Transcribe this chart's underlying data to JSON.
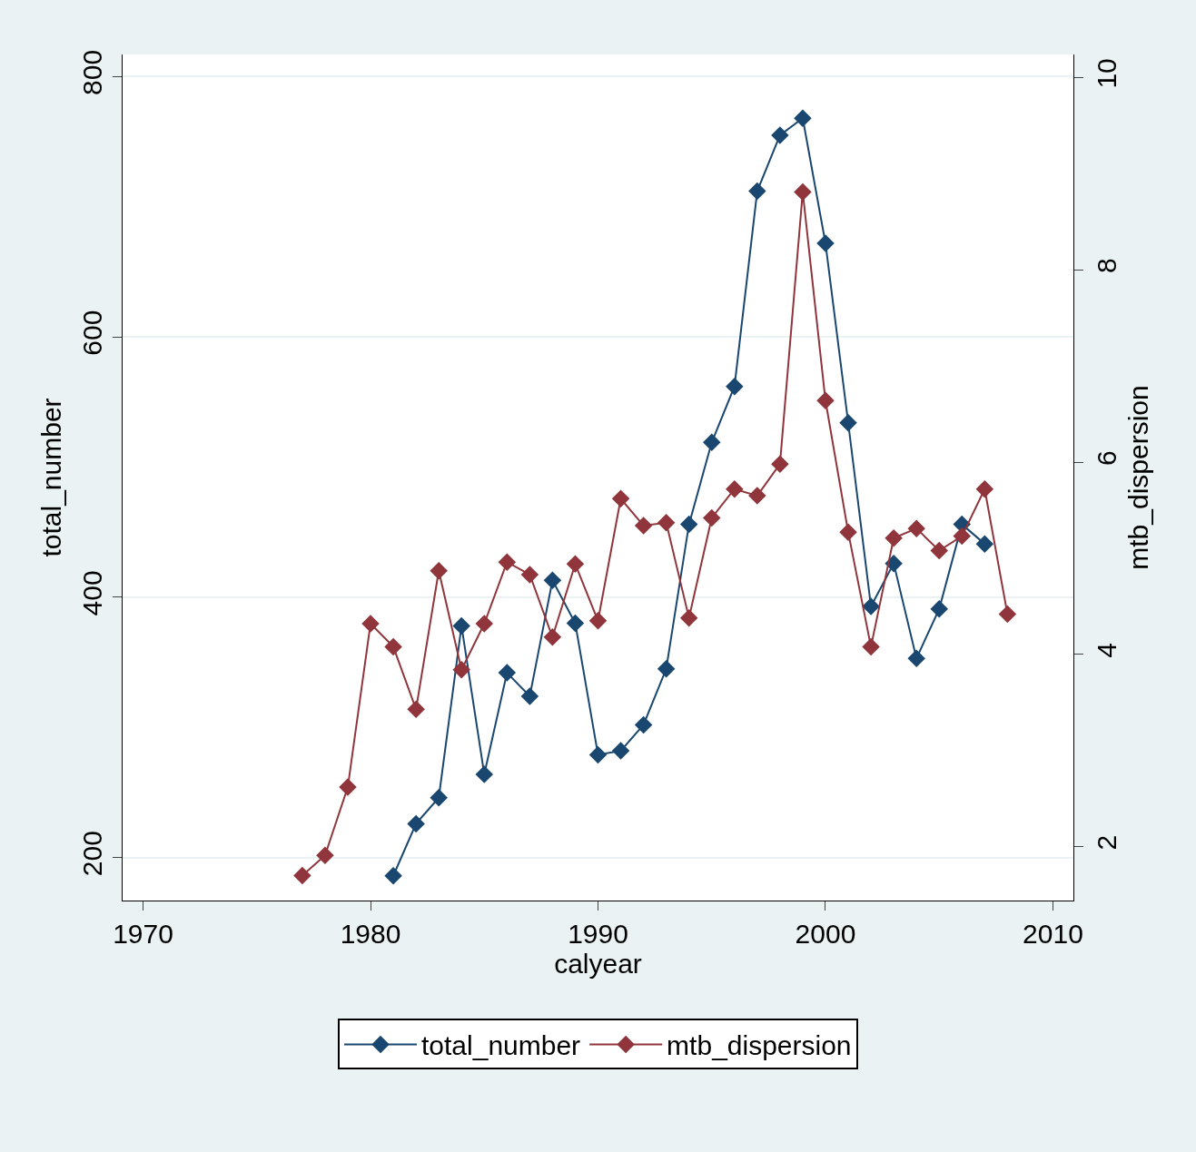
{
  "chart_data": {
    "type": "line",
    "xlabel": "calyear",
    "ylabel": "total_number",
    "y2label": "mtb_dispersion",
    "xlim": [
      1969.1,
      2010.9
    ],
    "xticks": [
      1970,
      1980,
      1990,
      2000,
      2010
    ],
    "ylim": [
      167,
      817
    ],
    "yticks": [
      200,
      400,
      600,
      800
    ],
    "y2lim": [
      1.44,
      10.24
    ],
    "y2ticks": [
      2,
      4,
      6,
      8,
      10
    ],
    "grid": "y",
    "legend": "bottom",
    "marker": "diamond",
    "line_style": "solid",
    "series": [
      {
        "name": "total_number",
        "color": "#1a476f",
        "x": [
          1981,
          1982,
          1983,
          1984,
          1985,
          1986,
          1987,
          1988,
          1989,
          1990,
          1991,
          1992,
          1993,
          1994,
          1995,
          1996,
          1997,
          1998,
          1999,
          2000,
          2001,
          2002,
          2003,
          2004,
          2005,
          2006,
          2007
        ],
        "values": [
          186,
          226,
          246,
          378,
          264,
          342,
          324,
          413,
          380,
          279,
          282,
          302,
          345,
          456,
          519,
          562,
          712,
          755,
          768,
          672,
          534,
          393,
          426,
          353,
          391,
          456,
          441
        ]
      },
      {
        "name": "mtb_dispersion",
        "color": "#90353b",
        "axis": "y2",
        "x": [
          1977,
          1978,
          1979,
          1980,
          1981,
          1982,
          1983,
          1984,
          1985,
          1986,
          1987,
          1988,
          1989,
          1990,
          1991,
          1992,
          1993,
          1994,
          1995,
          1996,
          1997,
          1998,
          1999,
          2000,
          2001,
          2002,
          2003,
          2004,
          2005,
          2006,
          2007,
          2008
        ],
        "values": [
          1.7,
          1.91,
          2.62,
          4.32,
          4.08,
          3.43,
          4.87,
          3.84,
          4.32,
          4.96,
          4.83,
          4.18,
          4.94,
          4.35,
          5.62,
          5.34,
          5.37,
          4.38,
          5.42,
          5.72,
          5.65,
          5.98,
          8.81,
          6.64,
          5.27,
          4.08,
          5.21,
          5.31,
          5.08,
          5.23,
          5.72,
          4.42
        ]
      }
    ]
  }
}
